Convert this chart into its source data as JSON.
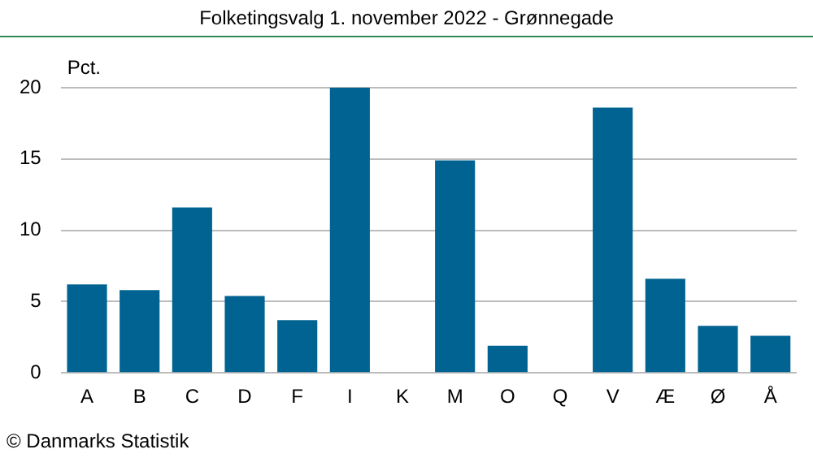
{
  "chart_data": {
    "type": "bar",
    "title": "Folketingsvalg 1. november 2022 - Grønnegade",
    "ylabel": "Pct.",
    "categories": [
      "A",
      "B",
      "C",
      "D",
      "F",
      "I",
      "K",
      "M",
      "O",
      "Q",
      "V",
      "Æ",
      "Ø",
      "Å"
    ],
    "values": [
      6.2,
      5.8,
      11.6,
      5.4,
      3.7,
      20.0,
      0,
      14.9,
      1.9,
      0,
      18.6,
      6.6,
      3.3,
      2.6
    ],
    "color": "#006391",
    "ylim": [
      0,
      20
    ],
    "yticks": [
      0,
      5,
      10,
      15,
      20
    ],
    "grid": "y",
    "legend": false,
    "annotations": [
      "© Danmarks Statistik"
    ]
  }
}
